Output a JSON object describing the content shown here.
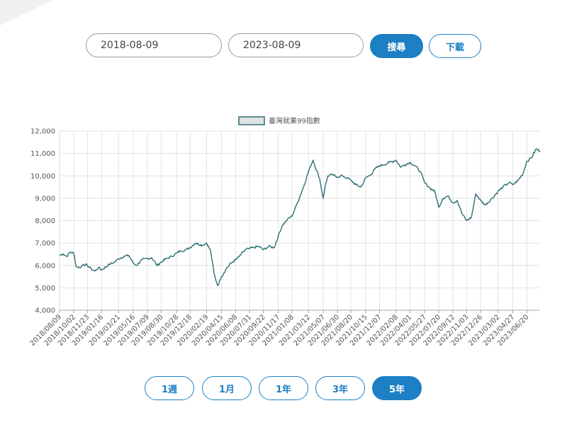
{
  "search": {
    "start_date": "2018-08-09",
    "end_date": "2023-08-09",
    "search_label": "搜尋",
    "download_label": "下載"
  },
  "range_buttons": {
    "one_week": "1週",
    "one_month": "1月",
    "one_year": "1年",
    "three_year": "3年",
    "five_year": "5年",
    "active": "5年"
  },
  "colors": {
    "accent": "#1d7fc4",
    "line": "#2e6f73",
    "legend_fill": "#dde3e3"
  },
  "chart_data": {
    "type": "line",
    "title": "",
    "xlabel": "",
    "ylabel": "",
    "ylim": [
      4000,
      12000
    ],
    "y_ticks": [
      "4,000",
      "5,000",
      "6,000",
      "7,000",
      "8,000",
      "9,000",
      "10,000",
      "11,000",
      "12,000"
    ],
    "x_tick_labels": [
      "2018/08/09",
      "2018/10/02",
      "2018/11/23",
      "2019/01/16",
      "2019/03/21",
      "2019/05/16",
      "2019/07/09",
      "2019/08/30",
      "2019/10/28",
      "2019/12/18",
      "2020/02/19",
      "2020/04/15",
      "2020/06/08",
      "2020/07/31",
      "2020/09/22",
      "2020/11/17",
      "2021/01/08",
      "2021/03/12",
      "2021/05/07",
      "2021/06/30",
      "2021/08/20",
      "2021/10/15",
      "2021/12/07",
      "2022/02/08",
      "2022/04/01",
      "2022/05/27",
      "2022/07/20",
      "2022/09/12",
      "2022/11/03",
      "2022/12/26",
      "2023/03/02",
      "2023/04/27",
      "2023/06/20"
    ],
    "grid": true,
    "legend_position": "top-center",
    "series": [
      {
        "name": "臺灣就業99指數",
        "x": [
          "2018/08/09",
          "2018/08/22",
          "2018/09/05",
          "2018/09/19",
          "2018/10/02",
          "2018/10/11",
          "2018/10/25",
          "2018/11/08",
          "2018/11/23",
          "2018/12/07",
          "2018/12/21",
          "2019/01/04",
          "2019/01/16",
          "2019/02/14",
          "2019/03/07",
          "2019/03/21",
          "2019/04/10",
          "2019/04/29",
          "2019/05/16",
          "2019/05/29",
          "2019/06/17",
          "2019/07/09",
          "2019/07/25",
          "2019/08/15",
          "2019/08/30",
          "2019/09/18",
          "2019/10/09",
          "2019/10/28",
          "2019/11/12",
          "2019/12/02",
          "2019/12/18",
          "2020/01/07",
          "2020/02/04",
          "2020/02/19",
          "2020/03/05",
          "2020/03/19",
          "2020/04/01",
          "2020/04/15",
          "2020/05/06",
          "2020/05/22",
          "2020/06/08",
          "2020/06/22",
          "2020/07/15",
          "2020/07/31",
          "2020/08/14",
          "2020/09/04",
          "2020/09/22",
          "2020/10/12",
          "2020/11/02",
          "2020/11/17",
          "2020/12/03",
          "2020/12/22",
          "2021/01/08",
          "2021/01/29",
          "2021/02/24",
          "2021/03/12",
          "2021/03/29",
          "2021/04/23",
          "2021/05/07",
          "2021/05/14",
          "2021/05/25",
          "2021/06/10",
          "2021/06/30",
          "2021/07/20",
          "2021/08/06",
          "2021/08/20",
          "2021/09/08",
          "2021/09/28",
          "2021/10/15",
          "2021/11/03",
          "2021/11/19",
          "2021/12/07",
          "2021/12/24",
          "2022/01/13",
          "2022/02/08",
          "2022/02/24",
          "2022/03/15",
          "2022/04/01",
          "2022/04/21",
          "2022/05/11",
          "2022/05/27",
          "2022/06/17",
          "2022/07/05",
          "2022/07/20",
          "2022/08/05",
          "2022/08/24",
          "2022/09/12",
          "2022/09/28",
          "2022/10/17",
          "2022/11/03",
          "2022/11/21",
          "2022/12/08",
          "2022/12/26",
          "2023/01/13",
          "2023/02/08",
          "2023/03/02",
          "2023/03/21",
          "2023/04/13",
          "2023/04/27",
          "2023/05/18",
          "2023/06/05",
          "2023/06/20",
          "2023/07/07",
          "2023/07/25",
          "2023/08/09"
        ],
        "values": [
          6450,
          6520,
          6400,
          6600,
          6550,
          5950,
          5900,
          6050,
          6000,
          5850,
          5750,
          5900,
          5800,
          6050,
          6150,
          6300,
          6400,
          6450,
          6100,
          6000,
          6250,
          6300,
          6350,
          6000,
          6150,
          6300,
          6400,
          6550,
          6650,
          6700,
          6800,
          7000,
          6900,
          7000,
          6650,
          5600,
          5100,
          5500,
          5900,
          6100,
          6250,
          6400,
          6700,
          6750,
          6800,
          6850,
          6700,
          6850,
          6800,
          7300,
          7800,
          8050,
          8200,
          8800,
          9600,
          10200,
          10700,
          9900,
          9000,
          9500,
          10000,
          10050,
          9950,
          10000,
          9900,
          9800,
          9600,
          9500,
          9900,
          10050,
          10300,
          10450,
          10500,
          10600,
          10700,
          10400,
          10500,
          10600,
          10450,
          10200,
          9700,
          9450,
          9300,
          8600,
          9000,
          9100,
          8800,
          8900,
          8300,
          8000,
          8150,
          9200,
          8900,
          8700,
          9000,
          9300,
          9500,
          9700,
          9600,
          9800,
          10100,
          10650,
          10800,
          11200,
          11100
        ]
      }
    ]
  }
}
